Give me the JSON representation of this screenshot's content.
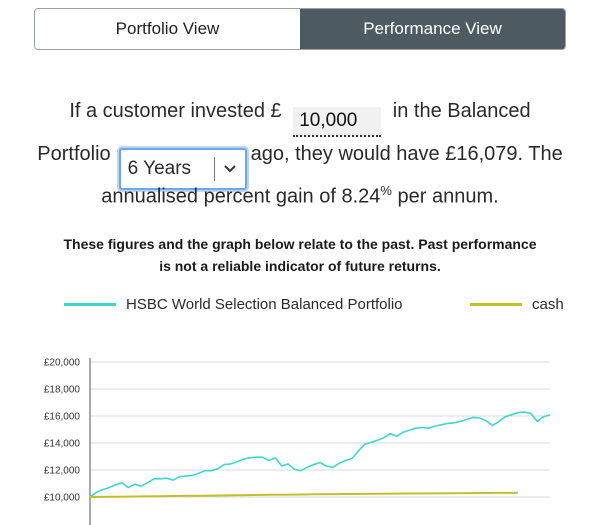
{
  "tabs": [
    {
      "label": "Portfolio View",
      "active": false
    },
    {
      "label": "Performance View",
      "active": true
    }
  ],
  "sentence": {
    "part1": "If a customer invested £",
    "amount_value": "10,000",
    "part2": "in the Balanced",
    "part3": "Portfolio",
    "period_value": "6 Years",
    "part4": "ago, they would have £16,079. The",
    "part5": "annualised percent gain of 8.24",
    "percent_sign": "%",
    "part6": " per annum."
  },
  "notice": {
    "line1": "These figures and the graph below relate to the past. Past performance",
    "line2": "is not a reliable indicator of future returns."
  },
  "colors": {
    "portfolio_series": "#3fd6cf",
    "cash_series": "#c2bf2a",
    "active_tab": "#4d5a61"
  },
  "chart_data": {
    "type": "line",
    "title": "",
    "xlabel": "",
    "ylabel": "",
    "y_ticks": [
      "£10,000",
      "£12,000",
      "£14,000",
      "£16,000",
      "£18,000",
      "£20,000"
    ],
    "ylim": [
      10000,
      20000
    ],
    "grid": true,
    "legend_placement": "top",
    "series": [
      {
        "name": "HSBC World Selection Balanced Portfolio",
        "values": [
          10000,
          10350,
          10550,
          10700,
          10900,
          11050,
          10700,
          10950,
          10800,
          11050,
          11350,
          11350,
          11400,
          11250,
          11500,
          11550,
          11600,
          11750,
          11950,
          11950,
          12100,
          12400,
          12450,
          12600,
          12800,
          12900,
          12950,
          12950,
          12700,
          12900,
          12300,
          12450,
          12050,
          11950,
          12200,
          12400,
          12550,
          12300,
          12200,
          12500,
          12700,
          12850,
          13400,
          13900,
          14050,
          14200,
          14400,
          14700,
          14500,
          14800,
          14950,
          15100,
          15150,
          15100,
          15250,
          15350,
          15450,
          15500,
          15600,
          15750,
          15900,
          15850,
          15650,
          15300,
          15600,
          15950,
          16100,
          16250,
          16300,
          16200,
          15600,
          15950,
          16079
        ]
      },
      {
        "name": "cash",
        "values": [
          10000,
          10020,
          10040,
          10060,
          10080,
          10100,
          10120,
          10140,
          10160,
          10180,
          10200,
          10215,
          10230,
          10245,
          10260,
          10270,
          10280,
          10290,
          10300,
          10310
        ]
      }
    ]
  }
}
